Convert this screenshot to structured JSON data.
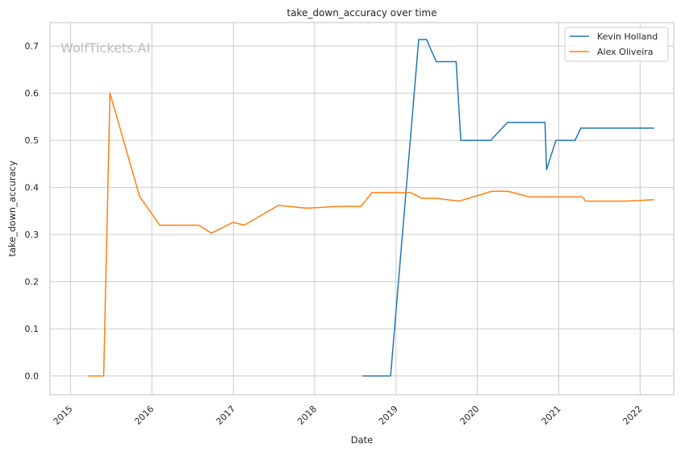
{
  "chart_data": {
    "type": "line",
    "title": "take_down_accuracy over time",
    "xlabel": "Date",
    "ylabel": "take_down_accuracy",
    "xlim": [
      "2014-10-01",
      "2022-06-01"
    ],
    "ylim": [
      -0.04,
      0.75
    ],
    "x_ticks": [
      "2015-01-01",
      "2016-01-01",
      "2017-01-01",
      "2018-01-01",
      "2019-01-01",
      "2020-01-01",
      "2021-01-01",
      "2022-01-01"
    ],
    "x_tick_labels": [
      "2015",
      "2016",
      "2017",
      "2018",
      "2019",
      "2020",
      "2021",
      "2022"
    ],
    "y_ticks": [
      0.0,
      0.1,
      0.2,
      0.3,
      0.4,
      0.5,
      0.6,
      0.7
    ],
    "y_tick_labels": [
      "0.0",
      "0.1",
      "0.2",
      "0.3",
      "0.4",
      "0.5",
      "0.6",
      "0.7"
    ],
    "grid": true,
    "legend_position": "top-right",
    "watermark": "WolfTickets.AI",
    "series": [
      {
        "name": "Kevin Holland",
        "color": "#1f77b4",
        "points": [
          [
            "2018-08-04",
            0.0
          ],
          [
            "2018-12-08",
            0.0
          ],
          [
            "2019-04-13",
            0.714
          ],
          [
            "2019-05-18",
            0.714
          ],
          [
            "2019-07-01",
            0.667
          ],
          [
            "2019-09-28",
            0.667
          ],
          [
            "2019-10-19",
            0.5
          ],
          [
            "2020-03-01",
            0.5
          ],
          [
            "2020-05-15",
            0.538
          ],
          [
            "2020-10-31",
            0.538
          ],
          [
            "2020-11-07",
            0.438
          ],
          [
            "2020-12-19",
            0.5
          ],
          [
            "2021-03-15",
            0.5
          ],
          [
            "2021-04-10",
            0.526
          ],
          [
            "2022-03-05",
            0.526
          ]
        ]
      },
      {
        "name": "Alex Oliveira",
        "color": "#ff7f0e",
        "points": [
          [
            "2015-03-21",
            0.0
          ],
          [
            "2015-05-30",
            0.0
          ],
          [
            "2015-06-27",
            0.6
          ],
          [
            "2015-11-07",
            0.381
          ],
          [
            "2016-02-06",
            0.32
          ],
          [
            "2016-07-30",
            0.32
          ],
          [
            "2016-09-24",
            0.303
          ],
          [
            "2016-12-30",
            0.326
          ],
          [
            "2017-02-19",
            0.32
          ],
          [
            "2017-07-22",
            0.362
          ],
          [
            "2017-11-25",
            0.356
          ],
          [
            "2018-04-21",
            0.36
          ],
          [
            "2018-07-28",
            0.36
          ],
          [
            "2018-09-15",
            0.389
          ],
          [
            "2019-03-09",
            0.389
          ],
          [
            "2019-04-27",
            0.377
          ],
          [
            "2019-07-01",
            0.377
          ],
          [
            "2019-10-12",
            0.371
          ],
          [
            "2020-03-07",
            0.392
          ],
          [
            "2020-05-16",
            0.392
          ],
          [
            "2020-08-22",
            0.38
          ],
          [
            "2021-04-17",
            0.38
          ],
          [
            "2021-05-01",
            0.371
          ],
          [
            "2021-10-30",
            0.371
          ],
          [
            "2022-03-05",
            0.374
          ]
        ]
      }
    ]
  }
}
